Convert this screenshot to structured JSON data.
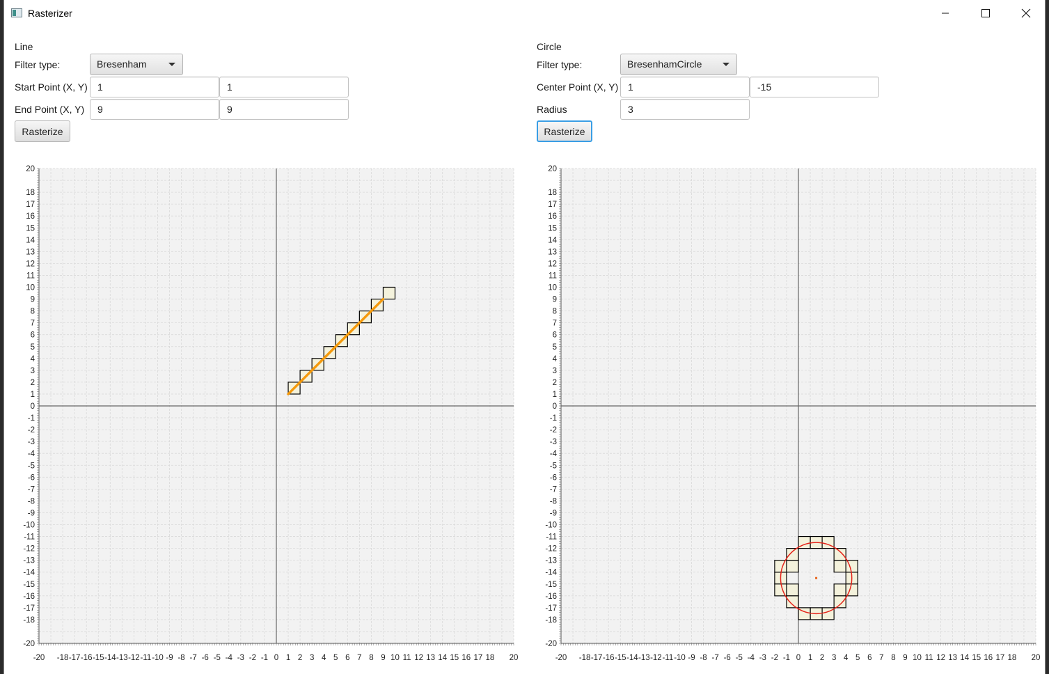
{
  "window": {
    "title": "Rasterizer",
    "icon": "app-window-icon"
  },
  "line_panel": {
    "section_label": "Line",
    "filter_label": "Filter type:",
    "filter_value": "Bresenham",
    "start_label": "Start Point (X, Y)",
    "start_x": "1",
    "start_y": "1",
    "end_label": "End Point (X, Y)",
    "end_x": "9",
    "end_y": "9",
    "button_label": "Rasterize"
  },
  "circle_panel": {
    "section_label": "Circle",
    "filter_label": "Filter type:",
    "filter_value": "BresenhamCircle",
    "center_label": "Center Point (X, Y)",
    "center_x": "1",
    "center_y": "-15",
    "radius_label": "Radius",
    "radius_value": "3",
    "button_label": "Rasterize"
  },
  "colors": {
    "line_stroke": "#f59a0c",
    "circle_stroke": "#e5251b",
    "pixel_fill": "#f4f2dc",
    "pixel_border": "#000000",
    "grid_background": "#f2f2f2",
    "focus_border": "#3a9ee5"
  },
  "chart_data": [
    {
      "type": "scatter",
      "name": "line-raster",
      "x_range": [
        -20,
        20
      ],
      "y_range": [
        -20,
        20
      ],
      "x_ticks": [
        -20,
        -18,
        -17,
        -16,
        -15,
        -14,
        -13,
        -12,
        -11,
        -10,
        -9,
        -8,
        -7,
        -6,
        -5,
        -4,
        -3,
        -2,
        -1,
        0,
        1,
        2,
        3,
        4,
        5,
        6,
        7,
        8,
        9,
        10,
        11,
        12,
        13,
        14,
        15,
        16,
        17,
        18,
        20
      ],
      "y_ticks": [
        -20,
        -18,
        -17,
        -16,
        -15,
        -14,
        -13,
        -12,
        -11,
        -10,
        -9,
        -8,
        -7,
        -6,
        -5,
        -4,
        -3,
        -2,
        -1,
        0,
        1,
        2,
        3,
        4,
        5,
        6,
        7,
        8,
        9,
        10,
        11,
        12,
        13,
        14,
        15,
        16,
        17,
        18,
        20
      ],
      "grid": true,
      "pixels": [
        [
          1,
          1
        ],
        [
          2,
          2
        ],
        [
          3,
          3
        ],
        [
          4,
          4
        ],
        [
          5,
          5
        ],
        [
          6,
          6
        ],
        [
          7,
          7
        ],
        [
          8,
          8
        ],
        [
          9,
          9
        ]
      ],
      "reference_line": {
        "from": [
          1,
          1
        ],
        "to": [
          9,
          9
        ]
      }
    },
    {
      "type": "scatter",
      "name": "circle-raster",
      "x_range": [
        -20,
        20
      ],
      "y_range": [
        -20,
        20
      ],
      "x_ticks": [
        -20,
        -18,
        -17,
        -16,
        -15,
        -14,
        -13,
        -12,
        -11,
        -10,
        -9,
        -8,
        -7,
        -6,
        -5,
        -4,
        -3,
        -2,
        -1,
        0,
        1,
        2,
        3,
        4,
        5,
        6,
        7,
        8,
        9,
        10,
        11,
        12,
        13,
        14,
        15,
        16,
        17,
        18,
        20
      ],
      "y_ticks": [
        -20,
        -18,
        -17,
        -16,
        -15,
        -14,
        -13,
        -12,
        -11,
        -10,
        -9,
        -8,
        -7,
        -6,
        -5,
        -4,
        -3,
        -2,
        -1,
        0,
        1,
        2,
        3,
        4,
        5,
        6,
        7,
        8,
        9,
        10,
        11,
        12,
        13,
        14,
        15,
        16,
        17,
        18,
        20
      ],
      "grid": true,
      "pixels": [
        [
          1,
          -12
        ],
        [
          1,
          -18
        ],
        [
          -2,
          -15
        ],
        [
          4,
          -15
        ],
        [
          2,
          -12
        ],
        [
          0,
          -12
        ],
        [
          2,
          -18
        ],
        [
          0,
          -18
        ],
        [
          3,
          -14
        ],
        [
          3,
          -16
        ],
        [
          -1,
          -14
        ],
        [
          -1,
          -16
        ],
        [
          3,
          -13
        ],
        [
          3,
          -17
        ],
        [
          -1,
          -13
        ],
        [
          -1,
          -17
        ],
        [
          -2,
          -14
        ],
        [
          -2,
          -16
        ],
        [
          4,
          -14
        ],
        [
          4,
          -16
        ]
      ],
      "reference_circle": {
        "center": [
          1,
          -15
        ],
        "radius": 3
      }
    }
  ]
}
